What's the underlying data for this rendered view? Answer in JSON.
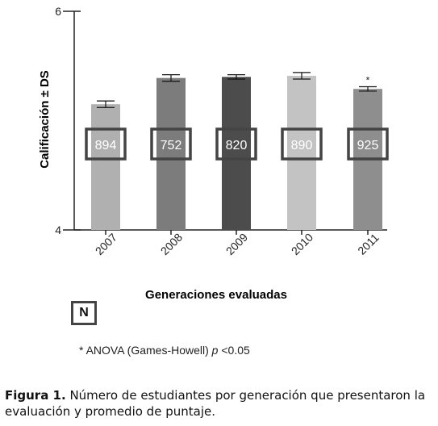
{
  "chart_data": {
    "type": "bar",
    "categories": [
      "2007",
      "2008",
      "2009",
      "2010",
      "2011"
    ],
    "values": [
      5.15,
      5.39,
      5.4,
      5.41,
      5.29
    ],
    "errors": [
      0.03,
      0.03,
      0.02,
      0.03,
      0.02
    ],
    "counts": [
      "894",
      "752",
      "820",
      "890",
      "925"
    ],
    "significance": [
      "",
      "",
      "",
      "",
      "*"
    ],
    "bar_colors": [
      "#b0b0b0",
      "#7c7c7c",
      "#4c4c4c",
      "#c3c3c3",
      "#8e8e8e"
    ],
    "ylabel": "Calificación ± DS",
    "xlabel": "Generaciones evaluadas",
    "ylim": [
      4,
      6
    ],
    "yticks": [
      "4",
      "6"
    ]
  },
  "legend": {
    "label": "N"
  },
  "footnote": {
    "prefix": "* ANOVA (Games-Howell) ",
    "p": "p",
    "suffix": " <0.05"
  },
  "caption": {
    "label": "Figura 1.",
    "text": " Número de estudiantes por generación que presentaron la evaluación y promedio de puntaje."
  }
}
